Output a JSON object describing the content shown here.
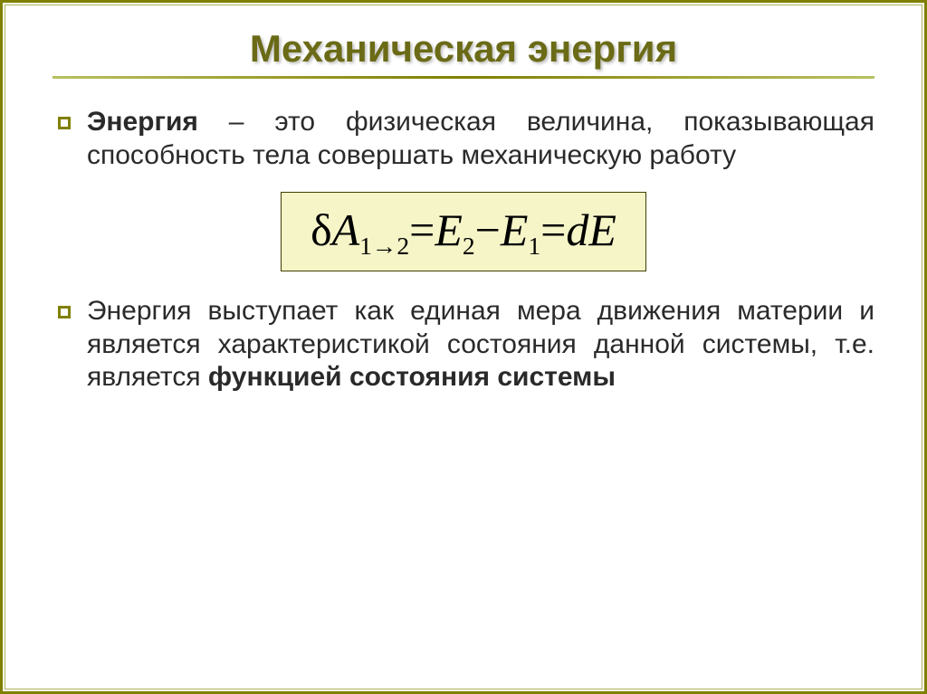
{
  "slide": {
    "title": "Механическая энергия",
    "title_color": "#6b6b17",
    "title_fontsize": 42,
    "title_weight": "bold",
    "bullet_border_color": "#808000",
    "body_color": "#2a2a2a",
    "body_fontsize": 30,
    "bullets": [
      {
        "lead": "Энергия",
        "rest": " – это физическая величина, показывающая способность тела совершать механическую работу",
        "bold_tail": ""
      },
      {
        "lead": "",
        "rest": "Энергия выступает как единая мера движения материи и является характеристикой состояния данной системы, т.е. является ",
        "bold_tail": "функцией состояния системы"
      }
    ],
    "formula": {
      "background": "#f5f5c8",
      "border_color": "#404000",
      "text_color": "#000000",
      "fontsize": 50,
      "delta": "δ",
      "A": "A",
      "sub12": "1→2",
      "eq1": " = ",
      "E2": "E",
      "sub2": "2",
      "minus": " − ",
      "E1": "E",
      "sub1": "1",
      "eq2": " = ",
      "dE": "dE"
    }
  }
}
